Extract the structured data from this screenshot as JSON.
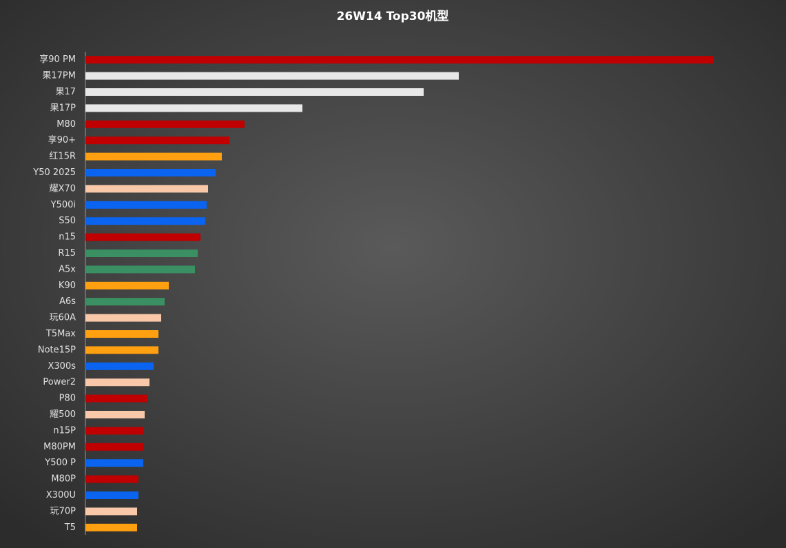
{
  "chart_data": {
    "type": "bar",
    "orientation": "horizontal",
    "title": "26W14 Top30机型",
    "categories": [
      "享90 PM",
      "果17PM",
      "果17",
      "果17P",
      "M80",
      "享90+",
      "红15R",
      "Y50 2025",
      "耀X70",
      "Y500i",
      "S50",
      "n15",
      "R15",
      "A5x",
      "K90",
      "A6s",
      "玩60A",
      "T5Max",
      "Note15P",
      "X300s",
      "Power2",
      "P80",
      "耀500",
      "n15P",
      "M80PM",
      "Y500 P",
      "M80P",
      "X300U",
      "玩70P",
      "T5"
    ],
    "values": [
      912,
      542,
      491,
      315,
      231,
      209,
      198,
      189,
      178,
      176,
      174,
      167,
      163,
      159,
      121,
      115,
      110,
      106,
      106,
      99,
      93,
      90,
      86,
      84,
      84,
      84,
      77,
      77,
      75,
      75
    ],
    "colors": [
      "#c00000",
      "#e8e8e8",
      "#e8e8e8",
      "#e8e8e8",
      "#c00000",
      "#c00000",
      "#ffa010",
      "#0a64f0",
      "#f8c8a8",
      "#0a64f0",
      "#0a64f0",
      "#c00000",
      "#3a9062",
      "#3a9062",
      "#ffa010",
      "#3a9062",
      "#f8c8a8",
      "#ffa010",
      "#ffa010",
      "#0a64f0",
      "#f8c8a8",
      "#c00000",
      "#f8c8a8",
      "#c00000",
      "#c00000",
      "#0a64f0",
      "#c00000",
      "#0a64f0",
      "#f8c8a8",
      "#ffa010"
    ],
    "xlim": [
      0,
      1000
    ]
  }
}
